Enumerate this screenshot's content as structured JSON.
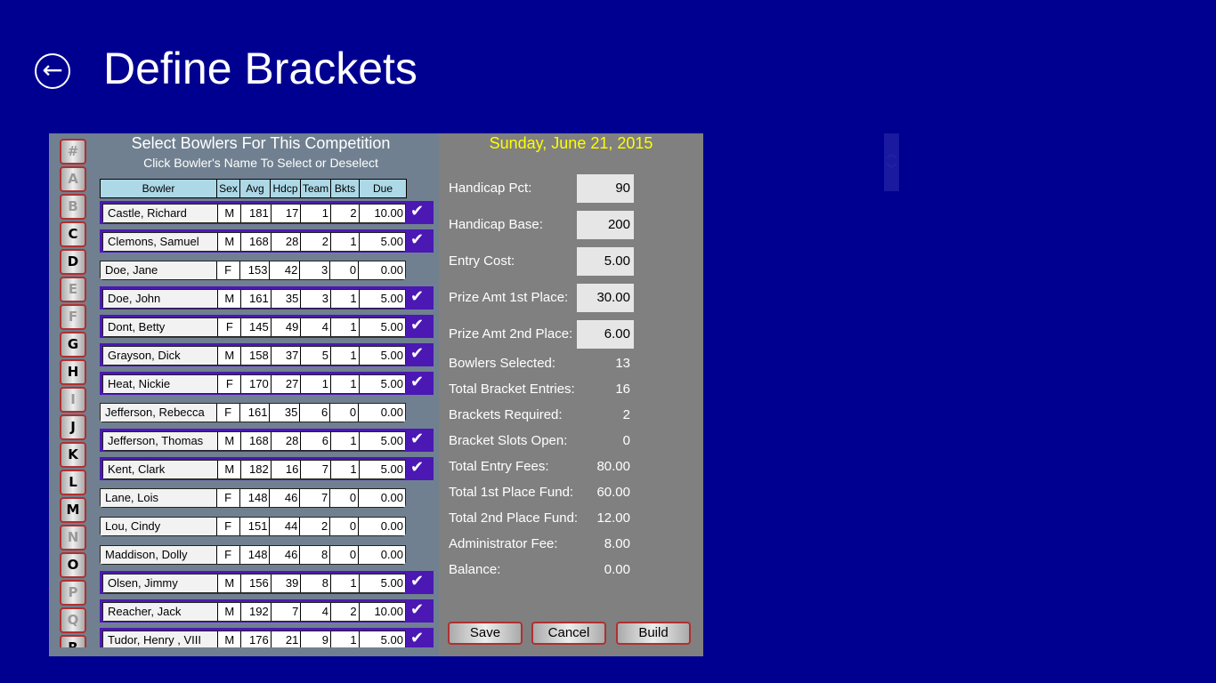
{
  "header": {
    "title": "Define Brackets",
    "back_icon": "back-arrow-icon"
  },
  "left": {
    "title": "Select Bowlers For This Competition",
    "subtitle": "Click Bowler's Name To Select or Deselect",
    "letters": [
      {
        "l": "#",
        "on": false
      },
      {
        "l": "A",
        "on": false
      },
      {
        "l": "B",
        "on": false
      },
      {
        "l": "C",
        "on": true
      },
      {
        "l": "D",
        "on": true
      },
      {
        "l": "E",
        "on": false
      },
      {
        "l": "F",
        "on": false
      },
      {
        "l": "G",
        "on": true
      },
      {
        "l": "H",
        "on": true
      },
      {
        "l": "I",
        "on": false
      },
      {
        "l": "J",
        "on": true
      },
      {
        "l": "K",
        "on": true
      },
      {
        "l": "L",
        "on": true
      },
      {
        "l": "M",
        "on": true
      },
      {
        "l": "N",
        "on": false
      },
      {
        "l": "O",
        "on": true
      },
      {
        "l": "P",
        "on": false
      },
      {
        "l": "Q",
        "on": false
      },
      {
        "l": "R",
        "on": true
      }
    ],
    "columns": [
      "Bowler",
      "Sex",
      "Avg",
      "Hdcp",
      "Team",
      "Bkts",
      "Due"
    ],
    "rows": [
      {
        "sel": true,
        "v": [
          "Castle, Richard",
          "M",
          "181",
          "17",
          "1",
          "2",
          "10.00"
        ]
      },
      {
        "sel": true,
        "v": [
          "Clemons, Samuel",
          "M",
          "168",
          "28",
          "2",
          "1",
          "5.00"
        ]
      },
      {
        "sel": false,
        "v": [
          "Doe, Jane",
          "F",
          "153",
          "42",
          "3",
          "0",
          "0.00"
        ]
      },
      {
        "sel": true,
        "v": [
          "Doe, John",
          "M",
          "161",
          "35",
          "3",
          "1",
          "5.00"
        ]
      },
      {
        "sel": true,
        "v": [
          "Dont, Betty",
          "F",
          "145",
          "49",
          "4",
          "1",
          "5.00"
        ]
      },
      {
        "sel": true,
        "v": [
          "Grayson, Dick",
          "M",
          "158",
          "37",
          "5",
          "1",
          "5.00"
        ]
      },
      {
        "sel": true,
        "v": [
          "Heat, Nickie",
          "F",
          "170",
          "27",
          "1",
          "1",
          "5.00"
        ]
      },
      {
        "sel": false,
        "v": [
          "Jefferson, Rebecca",
          "F",
          "161",
          "35",
          "6",
          "0",
          "0.00"
        ]
      },
      {
        "sel": true,
        "v": [
          "Jefferson, Thomas",
          "M",
          "168",
          "28",
          "6",
          "1",
          "5.00"
        ]
      },
      {
        "sel": true,
        "v": [
          "Kent, Clark",
          "M",
          "182",
          "16",
          "7",
          "1",
          "5.00"
        ]
      },
      {
        "sel": false,
        "v": [
          "Lane, Lois",
          "F",
          "148",
          "46",
          "7",
          "0",
          "0.00"
        ]
      },
      {
        "sel": false,
        "v": [
          "Lou, Cindy",
          "F",
          "151",
          "44",
          "2",
          "0",
          "0.00"
        ]
      },
      {
        "sel": false,
        "v": [
          "Maddison, Dolly",
          "F",
          "148",
          "46",
          "8",
          "0",
          "0.00"
        ]
      },
      {
        "sel": true,
        "v": [
          "Olsen, Jimmy",
          "M",
          "156",
          "39",
          "8",
          "1",
          "5.00"
        ]
      },
      {
        "sel": true,
        "v": [
          "Reacher, Jack",
          "M",
          "192",
          "7",
          "4",
          "2",
          "10.00"
        ]
      },
      {
        "sel": true,
        "v": [
          "Tudor, Henry , VIII",
          "M",
          "176",
          "21",
          "9",
          "1",
          "5.00"
        ]
      }
    ]
  },
  "right": {
    "date": "Sunday, June 21, 2015",
    "fields": [
      {
        "label": "Handicap Pct:",
        "value": "90"
      },
      {
        "label": "Handicap Base:",
        "value": "200"
      },
      {
        "label": "Entry Cost:",
        "value": "5.00"
      },
      {
        "label": "Prize Amt 1st Place:",
        "value": "30.00"
      },
      {
        "label": "Prize Amt 2nd Place:",
        "value": "6.00"
      }
    ],
    "stats": [
      {
        "label": "Bowlers Selected:",
        "value": "13"
      },
      {
        "label": "Total Bracket Entries:",
        "value": "16"
      },
      {
        "label": "Brackets Required:",
        "value": "2"
      },
      {
        "label": "Bracket Slots Open:",
        "value": "0"
      },
      {
        "label": "Total Entry Fees:",
        "value": "80.00"
      },
      {
        "label": "Total 1st Place Fund:",
        "value": "60.00"
      },
      {
        "label": "Total 2nd Place Fund:",
        "value": "12.00"
      },
      {
        "label": "Administrator Fee:",
        "value": "8.00"
      },
      {
        "label": "Balance:",
        "value": "0.00"
      }
    ],
    "buttons": {
      "save": "Save",
      "cancel": "Cancel",
      "build": "Build"
    }
  },
  "colors": {
    "background": "#000090",
    "selected_row": "#4b18b4",
    "header_row": "#add8e6",
    "date": "#ffff00"
  }
}
